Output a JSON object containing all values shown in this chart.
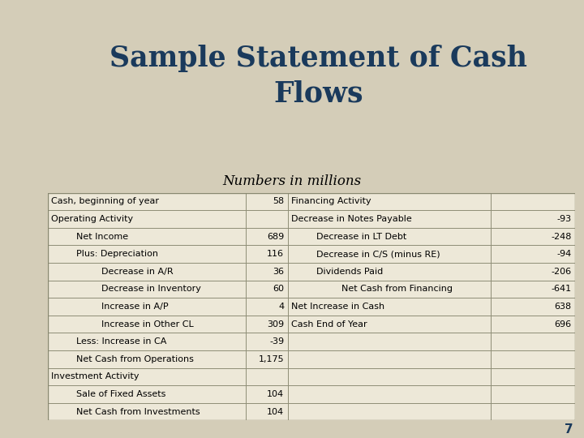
{
  "title": "Sample Statement of Cash\nFlows",
  "subtitle": "Numbers in millions",
  "title_color": "#1a3a5c",
  "title_bg_color": "#e8ead8",
  "lower_bg_color": "#d4cdb8",
  "left_bar_color": "#2a7878",
  "orange_bar_color": "#b85a20",
  "table_bg": "#ede8d8",
  "border_color": "#888870",
  "page_number": "7",
  "rows": [
    [
      "Cash, beginning of year",
      "58",
      "Financing Activity",
      ""
    ],
    [
      "Operating Activity",
      "",
      "Decrease in Notes Payable",
      "-93"
    ],
    [
      "    Net Income",
      "689",
      "    Decrease in LT Debt",
      "-248"
    ],
    [
      "    Plus: Depreciation",
      "116",
      "    Decrease in C/S (minus RE)",
      "-94"
    ],
    [
      "        Decrease in A/R",
      "36",
      "    Dividends Paid",
      "-206"
    ],
    [
      "        Decrease in Inventory",
      "60",
      "        Net Cash from Financing",
      "-641"
    ],
    [
      "        Increase in A/P",
      "4",
      "Net Increase in Cash",
      "638"
    ],
    [
      "        Increase in Other CL",
      "309",
      "Cash End of Year",
      "696"
    ],
    [
      "    Less: Increase in CA",
      "-39",
      "",
      ""
    ],
    [
      "    Net Cash from Operations",
      "1,175",
      "",
      ""
    ],
    [
      "Investment Activity",
      "",
      "",
      ""
    ],
    [
      "    Sale of Fixed Assets",
      "104",
      "",
      ""
    ],
    [
      "    Net Cash from Investments",
      "104",
      "",
      ""
    ]
  ]
}
